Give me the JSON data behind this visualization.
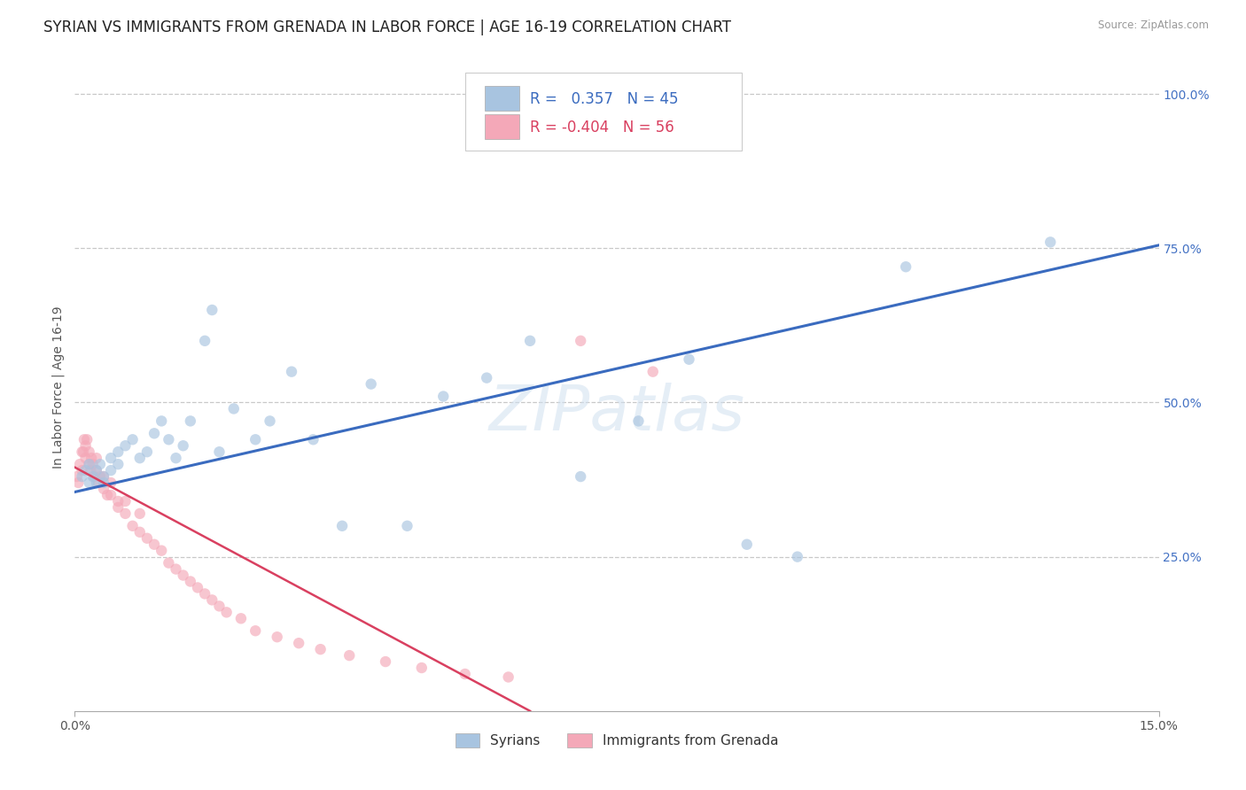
{
  "title": "SYRIAN VS IMMIGRANTS FROM GRENADA IN LABOR FORCE | AGE 16-19 CORRELATION CHART",
  "source": "Source: ZipAtlas.com",
  "ylabel": "In Labor Force | Age 16-19",
  "xlim": [
    0.0,
    0.15
  ],
  "ylim": [
    0.0,
    1.05
  ],
  "ytick_labels_right": [
    "100.0%",
    "75.0%",
    "50.0%",
    "25.0%"
  ],
  "ytick_positions_right": [
    1.0,
    0.75,
    0.5,
    0.25
  ],
  "grid_color": "#c8c8c8",
  "background_color": "#ffffff",
  "watermark": "ZIPatlas",
  "R_syrian": 0.357,
  "N_syrian": 45,
  "R_grenada": -0.404,
  "N_grenada": 56,
  "syrian_color": "#a8c4e0",
  "grenada_color": "#f4a8b8",
  "syrian_line_color": "#3a6bbf",
  "grenada_line_color": "#d94060",
  "legend_label_syrian": "Syrians",
  "legend_label_grenada": "Immigrants from Grenada",
  "syrian_x": [
    0.001,
    0.0015,
    0.002,
    0.002,
    0.0025,
    0.003,
    0.003,
    0.0035,
    0.004,
    0.004,
    0.005,
    0.005,
    0.006,
    0.006,
    0.007,
    0.008,
    0.009,
    0.01,
    0.011,
    0.012,
    0.013,
    0.014,
    0.015,
    0.016,
    0.018,
    0.019,
    0.02,
    0.022,
    0.025,
    0.027,
    0.03,
    0.033,
    0.037,
    0.041,
    0.046,
    0.051,
    0.057,
    0.063,
    0.07,
    0.078,
    0.085,
    0.093,
    0.1,
    0.115,
    0.135
  ],
  "syrian_y": [
    0.38,
    0.39,
    0.37,
    0.4,
    0.38,
    0.39,
    0.37,
    0.4,
    0.38,
    0.37,
    0.39,
    0.41,
    0.42,
    0.4,
    0.43,
    0.44,
    0.41,
    0.42,
    0.45,
    0.47,
    0.44,
    0.41,
    0.43,
    0.47,
    0.6,
    0.65,
    0.42,
    0.49,
    0.44,
    0.47,
    0.55,
    0.44,
    0.3,
    0.53,
    0.3,
    0.51,
    0.54,
    0.6,
    0.38,
    0.47,
    0.57,
    0.27,
    0.25,
    0.72,
    0.76
  ],
  "grenada_x": [
    0.0003,
    0.0005,
    0.0007,
    0.001,
    0.001,
    0.0012,
    0.0013,
    0.0015,
    0.0015,
    0.0017,
    0.002,
    0.002,
    0.0022,
    0.0023,
    0.0025,
    0.0027,
    0.003,
    0.003,
    0.0033,
    0.0035,
    0.004,
    0.004,
    0.0045,
    0.005,
    0.005,
    0.006,
    0.006,
    0.007,
    0.007,
    0.008,
    0.009,
    0.009,
    0.01,
    0.011,
    0.012,
    0.013,
    0.014,
    0.015,
    0.016,
    0.017,
    0.018,
    0.019,
    0.02,
    0.021,
    0.023,
    0.025,
    0.028,
    0.031,
    0.034,
    0.038,
    0.043,
    0.048,
    0.054,
    0.06,
    0.07,
    0.08
  ],
  "grenada_y": [
    0.38,
    0.37,
    0.4,
    0.42,
    0.39,
    0.42,
    0.44,
    0.43,
    0.41,
    0.44,
    0.4,
    0.42,
    0.39,
    0.41,
    0.4,
    0.38,
    0.39,
    0.41,
    0.37,
    0.38,
    0.36,
    0.38,
    0.35,
    0.37,
    0.35,
    0.34,
    0.33,
    0.32,
    0.34,
    0.3,
    0.32,
    0.29,
    0.28,
    0.27,
    0.26,
    0.24,
    0.23,
    0.22,
    0.21,
    0.2,
    0.19,
    0.18,
    0.17,
    0.16,
    0.15,
    0.13,
    0.12,
    0.11,
    0.1,
    0.09,
    0.08,
    0.07,
    0.06,
    0.055,
    0.6,
    0.55
  ],
  "syrian_trendline_x": [
    0.0,
    0.15
  ],
  "syrian_trendline_y": [
    0.355,
    0.755
  ],
  "grenada_trendline_x": [
    0.0,
    0.063
  ],
  "grenada_trendline_y": [
    0.395,
    0.0
  ],
  "scatter_size": 80,
  "scatter_alpha": 0.65,
  "title_fontsize": 12,
  "axis_label_fontsize": 10,
  "tick_fontsize": 10,
  "legend_fontsize": 11,
  "right_tick_color": "#4472c4"
}
